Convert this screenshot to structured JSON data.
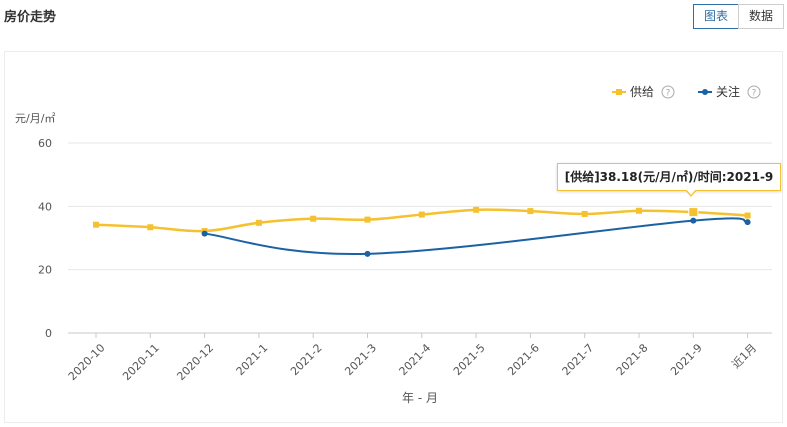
{
  "page": {
    "title": "房价走势"
  },
  "view_toggle": {
    "chart_label": "图表",
    "data_label": "数据"
  },
  "tooltip": {
    "text": "[供给]38.18(元/月/㎡)/时间:2021-9"
  },
  "colors": {
    "supply": "#f5c12e",
    "attention": "#1a62a4",
    "grid": "#e6e6e6",
    "axis": "#c8c8c8",
    "text": "#555555"
  },
  "chart_data": {
    "type": "line",
    "ylabel": "元/月/㎡",
    "xlabel": "年 - 月",
    "ylim": [
      0,
      60
    ],
    "yticks": [
      0,
      20,
      40,
      60
    ],
    "categories": [
      "2020-10",
      "2020-11",
      "2020-12",
      "2021-1",
      "2021-2",
      "2021-3",
      "2021-4",
      "2021-5",
      "2021-6",
      "2021-7",
      "2021-8",
      "2021-9",
      "近1月"
    ],
    "legend_position": "top-right",
    "series": [
      {
        "name": "供给",
        "help": "?",
        "color": "#f5c12e",
        "marker": "square",
        "values": [
          34.2,
          33.4,
          32.2,
          34.8,
          36.1,
          35.8,
          37.4,
          38.9,
          38.5,
          37.6,
          38.6,
          38.18,
          37.1
        ]
      },
      {
        "name": "关注",
        "help": "?",
        "color": "#1a62a4",
        "marker": "circle",
        "values": [
          null,
          null,
          31.4,
          null,
          null,
          25.0,
          null,
          null,
          null,
          null,
          null,
          35.5,
          35.0
        ]
      }
    ],
    "highlight": {
      "series": 0,
      "index": 11
    }
  }
}
